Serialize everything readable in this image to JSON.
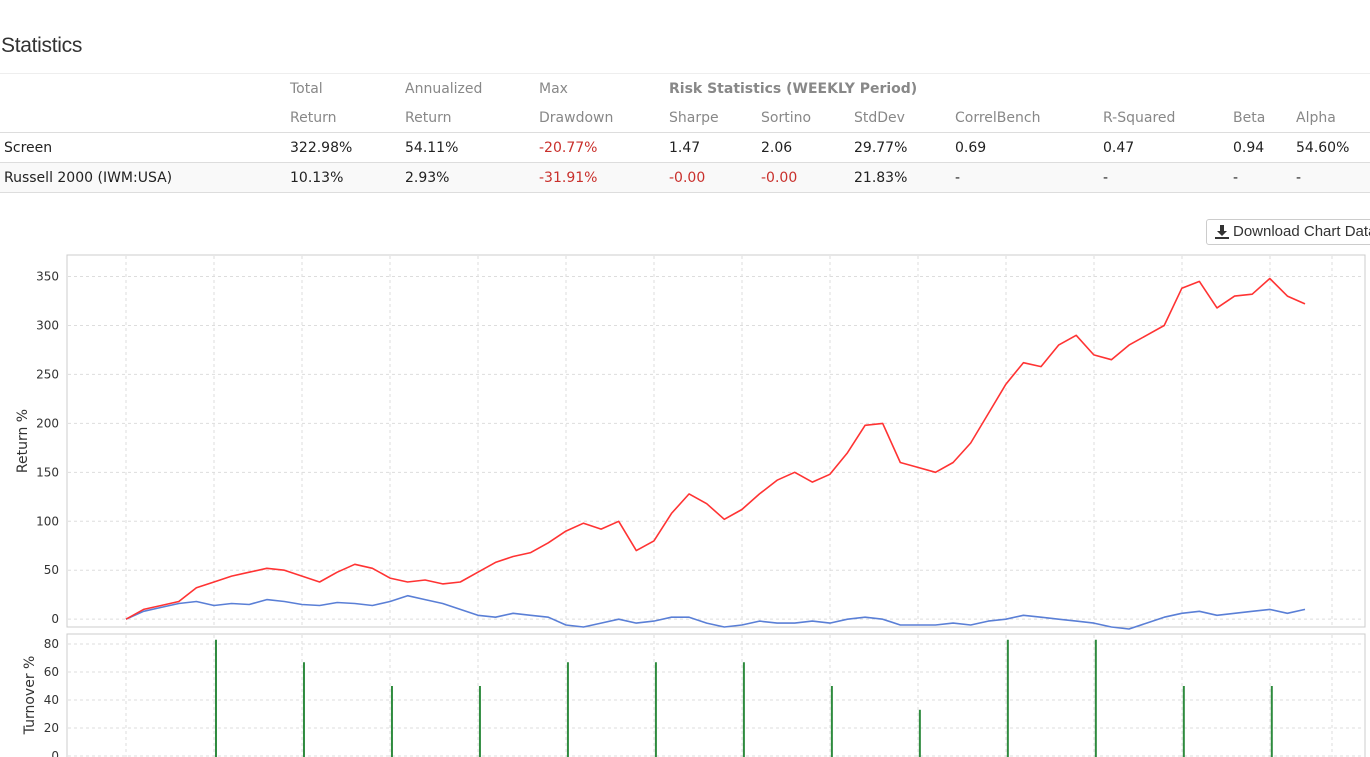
{
  "page": {
    "title": "Statistics"
  },
  "stats_table": {
    "header_row1": [
      "",
      "Total",
      "Annualized",
      "Max",
      "Risk Statistics (WEEKLY Period)",
      "",
      "",
      "",
      "",
      "",
      ""
    ],
    "header_row2": [
      "",
      "Return",
      "Return",
      "Drawdown",
      "Sharpe",
      "Sortino",
      "StdDev",
      "CorrelBench",
      "R-Squared",
      "Beta",
      "Alpha"
    ],
    "rows": [
      {
        "name": "Screen",
        "total_return": "322.98%",
        "annualized_return": "54.11%",
        "max_drawdown": "-20.77%",
        "sharpe": "1.47",
        "sortino": "2.06",
        "stddev": "29.77%",
        "correlbench": "0.69",
        "r_squared": "0.47",
        "beta": "0.94",
        "alpha": "54.60%"
      },
      {
        "name": "Russell 2000 (IWM:USA)",
        "total_return": "10.13%",
        "annualized_return": "2.93%",
        "max_drawdown": "-31.91%",
        "sharpe": "-0.00",
        "sortino": "-0.00",
        "stddev": "21.83%",
        "correlbench": "-",
        "r_squared": "-",
        "beta": "-",
        "alpha": "-"
      }
    ]
  },
  "download_button": {
    "label": "Download Chart Data",
    "icon": "download-icon"
  },
  "colors": {
    "screen": "#ff3333",
    "benchmark": "#5a7fd6",
    "turnover": "#2e8b3e",
    "grid": "#dddddd",
    "negative": "#c9302c"
  },
  "chart_data": [
    {
      "type": "line",
      "ylabel": "Return %",
      "ylim": [
        -8,
        372
      ],
      "yticks": [
        "0",
        "50",
        "100",
        "150",
        "200",
        "250",
        "300",
        "350"
      ],
      "x": [
        0,
        2,
        4,
        6,
        8,
        10,
        12,
        14,
        16,
        18,
        20,
        22,
        24,
        26,
        28,
        30,
        32,
        34,
        36,
        38,
        40,
        42,
        44,
        46,
        48,
        50,
        52,
        54,
        56,
        58,
        60,
        62,
        64,
        66,
        68,
        70,
        72,
        74,
        76,
        78,
        80,
        82,
        84,
        86,
        88,
        90,
        92,
        94,
        96,
        98,
        100,
        102,
        104,
        106,
        108,
        110,
        112,
        114,
        116,
        118,
        120,
        122,
        124,
        126,
        128,
        130,
        132,
        134
      ],
      "series": [
        {
          "values": [
            0,
            10,
            14,
            18,
            32,
            38,
            44,
            48,
            52,
            50,
            44,
            38,
            48,
            56,
            52,
            42,
            38,
            40,
            36,
            38,
            48,
            58,
            64,
            68,
            78,
            90,
            98,
            92,
            100,
            70,
            80,
            108,
            128,
            118,
            102,
            112,
            128,
            142,
            150,
            140,
            148,
            170,
            198,
            200,
            160,
            155,
            150,
            160,
            180,
            210,
            240,
            262,
            258,
            280,
            290,
            270,
            265,
            280,
            290,
            300,
            338,
            345,
            318,
            330,
            332,
            348,
            330,
            322
          ]
        },
        {
          "values": [
            0,
            8,
            12,
            16,
            18,
            14,
            16,
            15,
            20,
            18,
            15,
            14,
            17,
            16,
            14,
            18,
            24,
            20,
            16,
            10,
            4,
            2,
            6,
            4,
            2,
            -6,
            -8,
            -4,
            0,
            -4,
            -2,
            2,
            2,
            -4,
            -8,
            -6,
            -2,
            -4,
            -4,
            -2,
            -4,
            0,
            2,
            0,
            -6,
            -6,
            -6,
            -4,
            -6,
            -2,
            0,
            4,
            2,
            0,
            -2,
            -4,
            -8,
            -10,
            -4,
            2,
            6,
            8,
            4,
            6,
            8,
            10,
            6,
            10
          ]
        }
      ]
    },
    {
      "type": "bar",
      "ylabel": "Turnover %",
      "ylim": [
        0,
        85
      ],
      "yticks": [
        "0",
        "20",
        "40",
        "60",
        "80"
      ],
      "x": [
        10,
        20,
        30,
        40,
        50,
        60,
        70,
        80,
        90,
        100,
        110,
        120,
        130
      ],
      "values": [
        83,
        67,
        50,
        50,
        67,
        67,
        67,
        50,
        33,
        83,
        83,
        50,
        50
      ]
    }
  ]
}
